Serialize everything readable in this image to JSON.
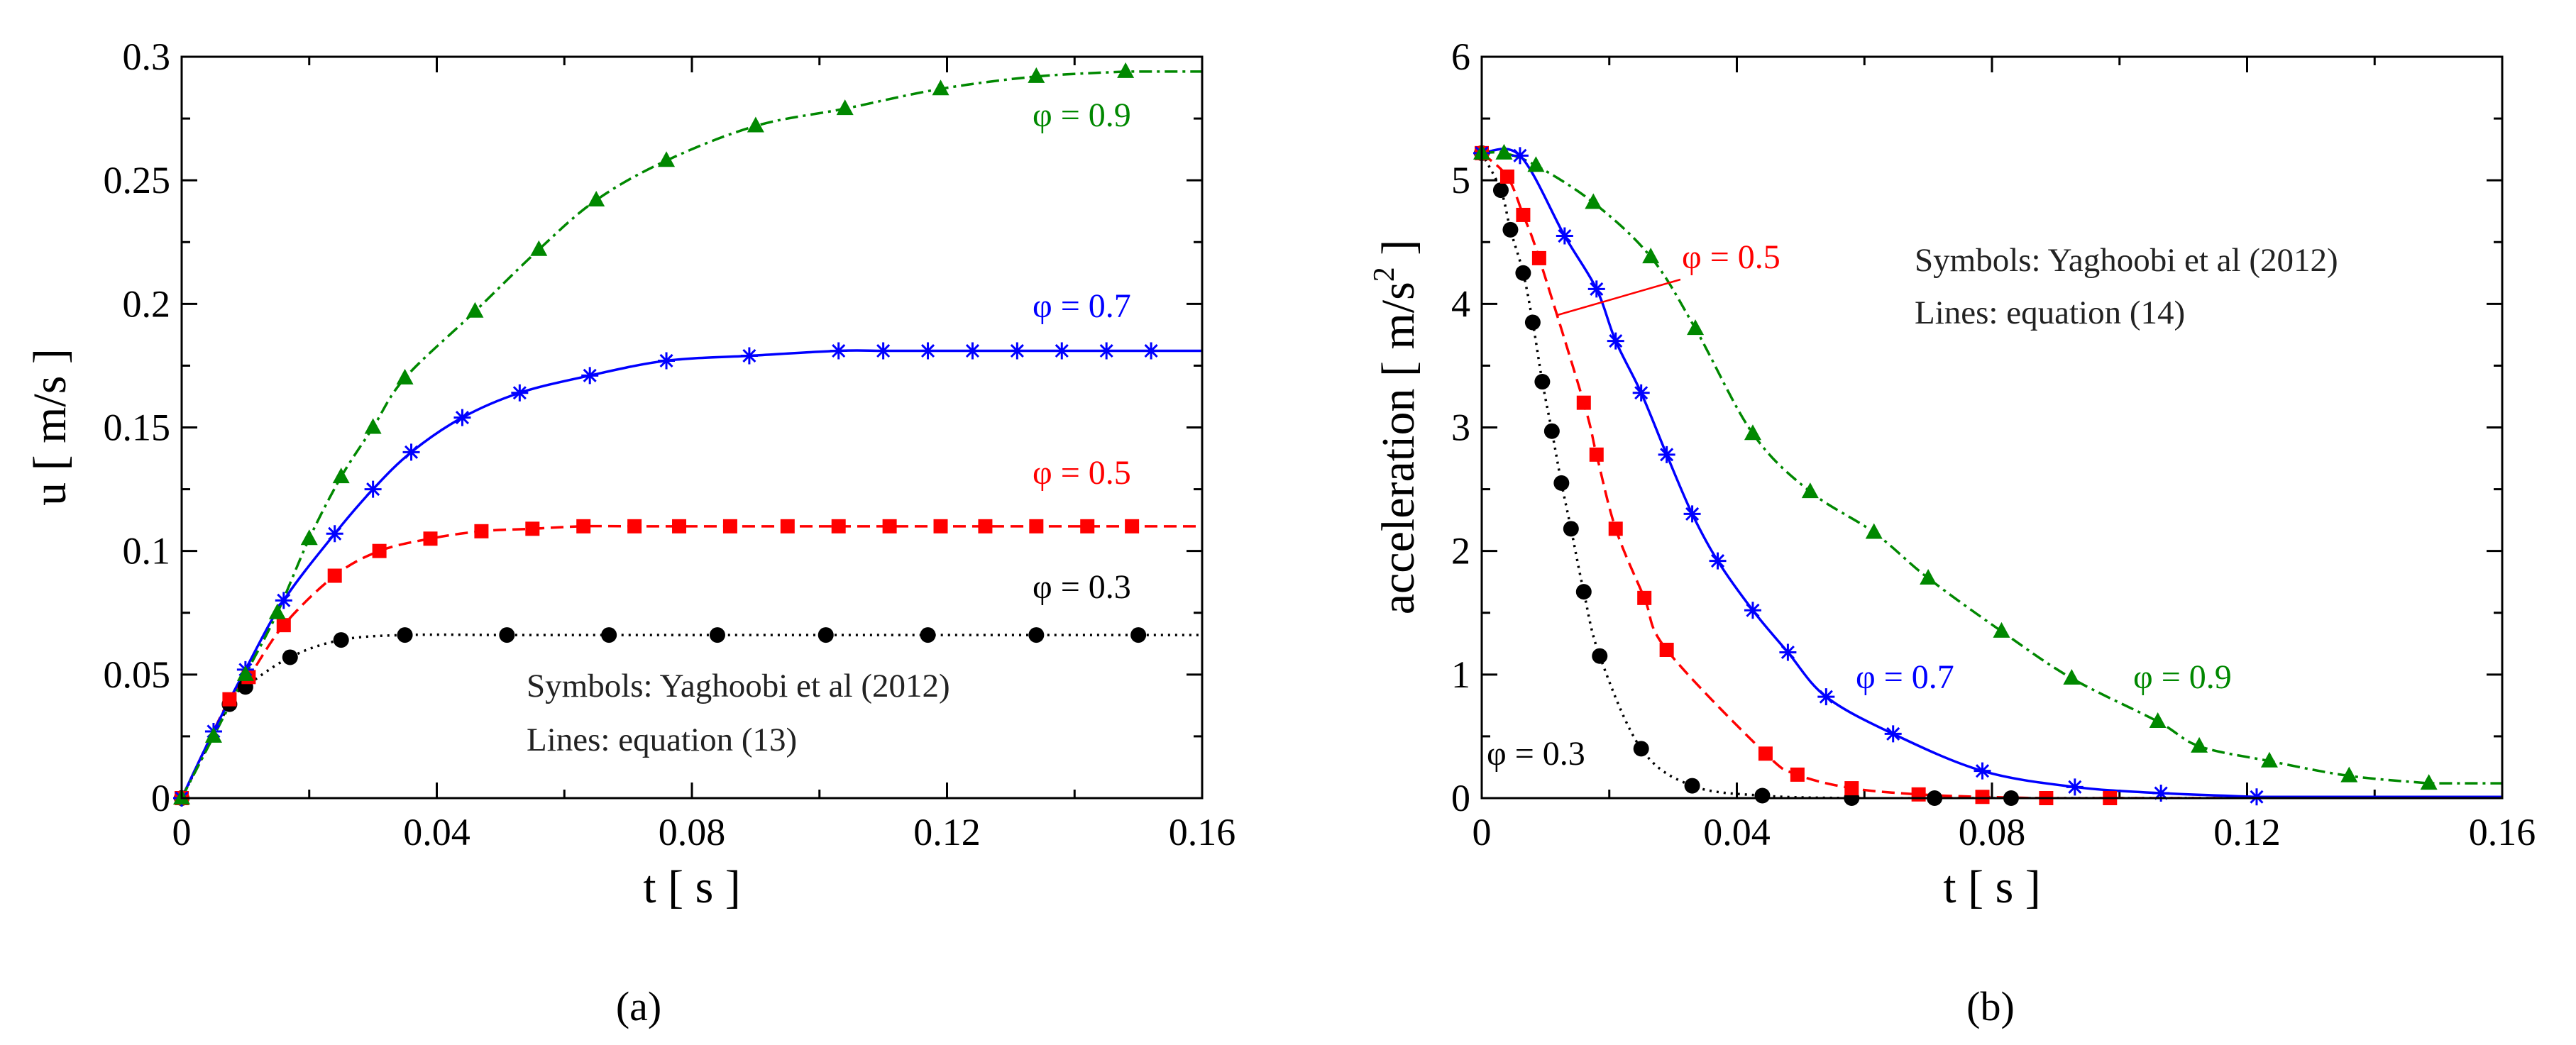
{
  "chart_data": [
    {
      "panel_label": "(a)",
      "type": "line",
      "xlabel": "t [ s ]",
      "ylabel": "u [ m/s ]",
      "xlim": [
        0,
        0.16
      ],
      "ylim": [
        0,
        0.3
      ],
      "xticks": [
        "0",
        "0.04",
        "0.08",
        "0.12",
        "0.16"
      ],
      "yticks": [
        "0",
        "0.05",
        "0.1",
        "0.15",
        "0.2",
        "0.25",
        "0.3"
      ],
      "notes": [
        "Symbols: Yaghoobi et al (2012)",
        "Lines: equation (13)"
      ],
      "series": [
        {
          "label": "φ = 0.3",
          "color": "#000000",
          "line_style": "dotted",
          "marker": "circle",
          "points": [
            [
              0,
              0
            ],
            [
              0.0075,
              0.038
            ],
            [
              0.01,
              0.045
            ],
            [
              0.017,
              0.057
            ],
            [
              0.025,
              0.064
            ],
            [
              0.035,
              0.066
            ],
            [
              0.051,
              0.066
            ],
            [
              0.067,
              0.066
            ],
            [
              0.084,
              0.066
            ],
            [
              0.101,
              0.066
            ],
            [
              0.117,
              0.066
            ],
            [
              0.134,
              0.066
            ],
            [
              0.15,
              0.066
            ]
          ]
        },
        {
          "label": "φ = 0.5",
          "color": "#ff0000",
          "line_style": "dashed",
          "marker": "square",
          "points": [
            [
              0,
              0
            ],
            [
              0.0075,
              0.04
            ],
            [
              0.0105,
              0.049
            ],
            [
              0.016,
              0.07
            ],
            [
              0.024,
              0.09
            ],
            [
              0.031,
              0.1
            ],
            [
              0.039,
              0.105
            ],
            [
              0.047,
              0.108
            ],
            [
              0.055,
              0.109
            ],
            [
              0.063,
              0.11
            ],
            [
              0.071,
              0.11
            ],
            [
              0.078,
              0.11
            ],
            [
              0.086,
              0.11
            ],
            [
              0.095,
              0.11
            ],
            [
              0.103,
              0.11
            ],
            [
              0.111,
              0.11
            ],
            [
              0.119,
              0.11
            ],
            [
              0.126,
              0.11
            ],
            [
              0.134,
              0.11
            ],
            [
              0.142,
              0.11
            ],
            [
              0.149,
              0.11
            ]
          ]
        },
        {
          "label": "φ = 0.7",
          "color": "#0000ff",
          "line_style": "solid",
          "marker": "asterisk",
          "points": [
            [
              0,
              0
            ],
            [
              0.005,
              0.027
            ],
            [
              0.01,
              0.052
            ],
            [
              0.016,
              0.08
            ],
            [
              0.024,
              0.107
            ],
            [
              0.03,
              0.125
            ],
            [
              0.036,
              0.14
            ],
            [
              0.044,
              0.154
            ],
            [
              0.053,
              0.164
            ],
            [
              0.064,
              0.171
            ],
            [
              0.076,
              0.177
            ],
            [
              0.089,
              0.179
            ],
            [
              0.103,
              0.181
            ],
            [
              0.11,
              0.181
            ],
            [
              0.117,
              0.181
            ],
            [
              0.124,
              0.181
            ],
            [
              0.131,
              0.181
            ],
            [
              0.138,
              0.181
            ],
            [
              0.145,
              0.181
            ],
            [
              0.152,
              0.181
            ]
          ]
        },
        {
          "label": "φ = 0.9",
          "color": "#008800",
          "line_style": "dash-dot",
          "marker": "triangle",
          "points": [
            [
              0,
              0
            ],
            [
              0.005,
              0.025
            ],
            [
              0.01,
              0.05
            ],
            [
              0.015,
              0.075
            ],
            [
              0.02,
              0.105
            ],
            [
              0.025,
              0.13
            ],
            [
              0.03,
              0.15
            ],
            [
              0.035,
              0.17
            ],
            [
              0.046,
              0.197
            ],
            [
              0.056,
              0.222
            ],
            [
              0.065,
              0.242
            ],
            [
              0.076,
              0.258
            ],
            [
              0.09,
              0.272
            ],
            [
              0.104,
              0.279
            ],
            [
              0.119,
              0.287
            ],
            [
              0.134,
              0.292
            ],
            [
              0.148,
              0.294
            ]
          ]
        }
      ]
    },
    {
      "panel_label": "(b)",
      "type": "line",
      "xlabel": "t [ s ]",
      "ylabel_main": "acceleration [ m/s",
      "ylabel_sup": "2",
      "ylabel_end": " ]",
      "xlim": [
        0,
        0.16
      ],
      "ylim": [
        0,
        6
      ],
      "xticks": [
        "0",
        "0.04",
        "0.08",
        "0.12",
        "0.16"
      ],
      "yticks": [
        "0",
        "1",
        "2",
        "3",
        "4",
        "5",
        "6"
      ],
      "notes": [
        "Symbols: Yaghoobi et al (2012)",
        "Lines: equation (14)"
      ],
      "series": [
        {
          "label": "φ = 0.3",
          "color": "#000000",
          "line_style": "dotted",
          "marker": "circle",
          "points": [
            [
              0,
              5.22
            ],
            [
              0.003,
              4.92
            ],
            [
              0.0045,
              4.6
            ],
            [
              0.0065,
              4.25
            ],
            [
              0.008,
              3.85
            ],
            [
              0.0095,
              3.37
            ],
            [
              0.011,
              2.97
            ],
            [
              0.0125,
              2.55
            ],
            [
              0.014,
              2.18
            ],
            [
              0.016,
              1.67
            ],
            [
              0.0185,
              1.15
            ],
            [
              0.025,
              0.4
            ],
            [
              0.033,
              0.1
            ],
            [
              0.044,
              0.02
            ],
            [
              0.058,
              0
            ],
            [
              0.071,
              0
            ],
            [
              0.083,
              0
            ]
          ]
        },
        {
          "label": "φ = 0.5",
          "color": "#ff0000",
          "line_style": "dashed",
          "marker": "square",
          "points": [
            [
              0,
              5.22
            ],
            [
              0.004,
              5.03
            ],
            [
              0.0065,
              4.72
            ],
            [
              0.009,
              4.37
            ],
            [
              0.016,
              3.2
            ],
            [
              0.018,
              2.78
            ],
            [
              0.021,
              2.18
            ],
            [
              0.0255,
              1.62
            ],
            [
              0.029,
              1.2
            ],
            [
              0.0445,
              0.36
            ],
            [
              0.0495,
              0.19
            ],
            [
              0.058,
              0.08
            ],
            [
              0.0685,
              0.03
            ],
            [
              0.0785,
              0.01
            ],
            [
              0.0885,
              0
            ],
            [
              0.0985,
              0
            ]
          ]
        },
        {
          "label": "φ = 0.7",
          "color": "#0000ff",
          "line_style": "solid",
          "marker": "asterisk",
          "points": [
            [
              0,
              5.22
            ],
            [
              0.006,
              5.2
            ],
            [
              0.013,
              4.55
            ],
            [
              0.018,
              4.12
            ],
            [
              0.021,
              3.7
            ],
            [
              0.025,
              3.28
            ],
            [
              0.029,
              2.78
            ],
            [
              0.033,
              2.3
            ],
            [
              0.037,
              1.92
            ],
            [
              0.0425,
              1.52
            ],
            [
              0.048,
              1.18
            ],
            [
              0.054,
              0.82
            ],
            [
              0.0645,
              0.52
            ],
            [
              0.0785,
              0.22
            ],
            [
              0.093,
              0.09
            ],
            [
              0.1065,
              0.04
            ],
            [
              0.1215,
              0.01
            ]
          ]
        },
        {
          "label": "φ = 0.9",
          "color": "#008800",
          "line_style": "dash-dot",
          "marker": "triangle",
          "points": [
            [
              0,
              5.22
            ],
            [
              0.0035,
              5.22
            ],
            [
              0.0085,
              5.12
            ],
            [
              0.0175,
              4.82
            ],
            [
              0.0265,
              4.38
            ],
            [
              0.0335,
              3.8
            ],
            [
              0.0425,
              2.95
            ],
            [
              0.0515,
              2.48
            ],
            [
              0.0615,
              2.15
            ],
            [
              0.07,
              1.78
            ],
            [
              0.0815,
              1.35
            ],
            [
              0.0925,
              0.97
            ],
            [
              0.106,
              0.62
            ],
            [
              0.1125,
              0.42
            ],
            [
              0.1235,
              0.3
            ],
            [
              0.136,
              0.18
            ],
            [
              0.1485,
              0.12
            ]
          ]
        }
      ]
    }
  ]
}
